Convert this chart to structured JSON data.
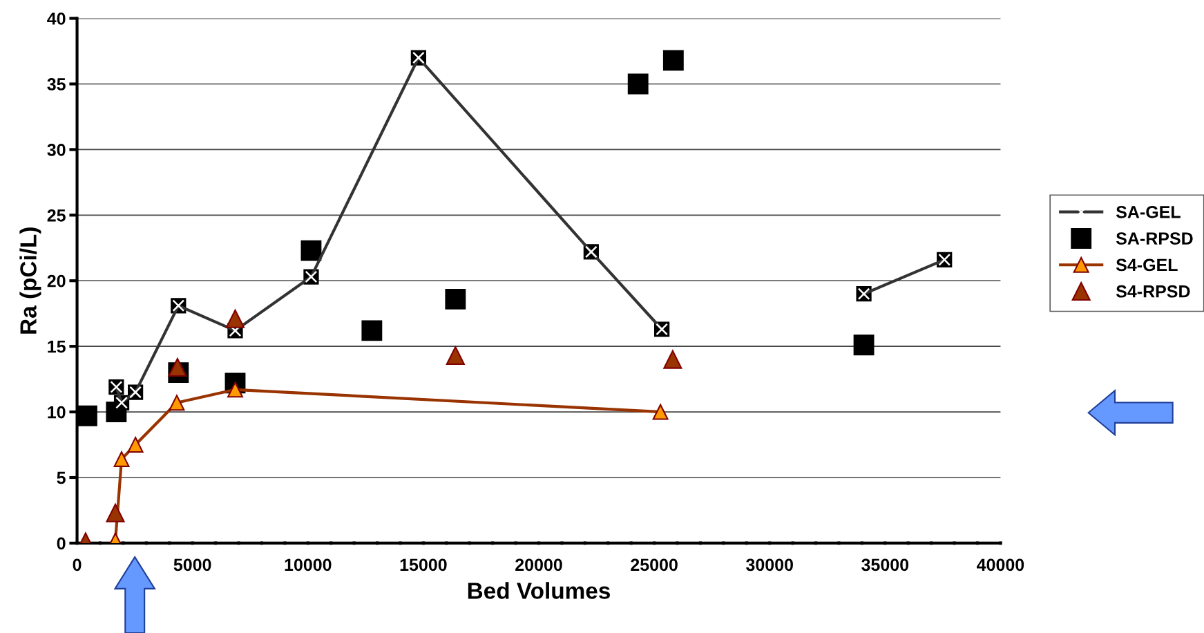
{
  "chart_data": {
    "type": "line",
    "xlabel": "Bed Volumes",
    "ylabel": "Ra (pCi/L)",
    "xlim": [
      0,
      40000
    ],
    "ylim": [
      0,
      40
    ],
    "xticks": [
      0,
      {
        "value": 1000,
        "label": null
      },
      {
        "value": 2000,
        "label": null
      },
      {
        "value": 3000,
        "label": null
      },
      {
        "value": 4000,
        "label": null
      },
      5000,
      {
        "value": 6000,
        "label": null
      },
      {
        "value": 7000,
        "label": null
      },
      {
        "value": 8000,
        "label": null
      },
      {
        "value": 9000,
        "label": null
      },
      10000,
      {
        "value": 11000,
        "label": null
      },
      {
        "value": 12000,
        "label": null
      },
      {
        "value": 13000,
        "label": null
      },
      {
        "value": 14000,
        "label": null
      },
      15000,
      {
        "value": 16000,
        "label": null
      },
      {
        "value": 17000,
        "label": null
      },
      {
        "value": 18000,
        "label": null
      },
      {
        "value": 19000,
        "label": null
      },
      20000,
      {
        "value": 21000,
        "label": null
      },
      {
        "value": 22000,
        "label": null
      },
      {
        "value": 23000,
        "label": null
      },
      {
        "value": 24000,
        "label": null
      },
      25000,
      {
        "value": 26000,
        "label": null
      },
      {
        "value": 27000,
        "label": null
      },
      {
        "value": 28000,
        "label": null
      },
      {
        "value": 29000,
        "label": null
      },
      30000,
      {
        "value": 31000,
        "label": null
      },
      {
        "value": 32000,
        "label": null
      },
      {
        "value": 33000,
        "label": null
      },
      {
        "value": 34000,
        "label": null
      },
      35000,
      {
        "value": 36000,
        "label": null
      },
      {
        "value": 37000,
        "label": null
      },
      {
        "value": 38000,
        "label": null
      },
      {
        "value": 39000,
        "label": null
      },
      40000
    ],
    "yticks": [
      0,
      5,
      10,
      15,
      20,
      25,
      30,
      35,
      40
    ],
    "grid": "y",
    "legend": "right",
    "series": [
      {
        "name": "SA-GEL",
        "color": "#333333",
        "marker": "cross",
        "x": [
          1700,
          1930,
          2530,
          4390,
          6850,
          10140,
          14790,
          22270,
          25330,
          30170,
          34080,
          37570
        ],
        "values": [
          11.9,
          10.7,
          11.5,
          18.1,
          16.2,
          20.3,
          37.0,
          22.2,
          16.3,
          null,
          19.0,
          21.6
        ]
      },
      {
        "name": "SA-RPSD",
        "type": "scatter",
        "color": "#000000",
        "marker": "square",
        "x": [
          430,
          1700,
          4390,
          6850,
          10140,
          12770,
          16390,
          24300,
          25830,
          34080
        ],
        "values": [
          9.7,
          10.0,
          13.0,
          12.2,
          22.3,
          16.2,
          18.6,
          35.0,
          36.8,
          15.1
        ]
      },
      {
        "name": "S4-GEL",
        "color": "#993300",
        "marker": "triangle",
        "x": [
          1660,
          1930,
          2530,
          4320,
          6850,
          25270
        ],
        "values": [
          0.2,
          6.4,
          7.5,
          10.7,
          11.7,
          10.0
        ]
      },
      {
        "name": "S4-RPSD",
        "type": "scatter",
        "color": "#993300",
        "marker": "triangle",
        "x": [
          370,
          1660,
          4350,
          6850,
          16390,
          25800
        ],
        "values": [
          0.1,
          2.3,
          13.4,
          17.1,
          14.3,
          14.0
        ]
      }
    ]
  }
}
